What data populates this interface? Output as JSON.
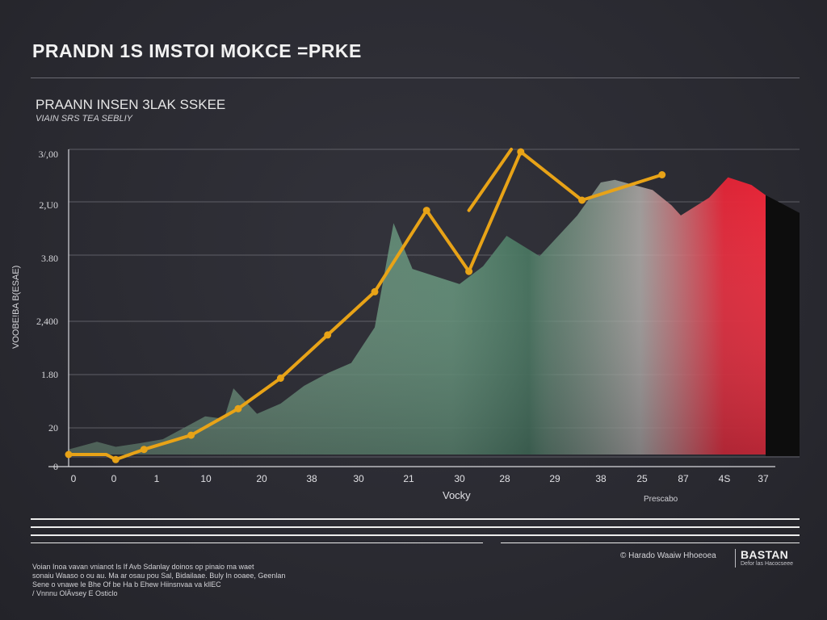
{
  "header": {
    "title": "PRANDN 1S IMSTOI MOKCE =PRKE"
  },
  "chart_data": {
    "type": "area",
    "title": "PRAANN INSEN 3LAK SSKEE",
    "subtitle": "VIAIN SRS TEA SEBLIY",
    "xlabel": "Vocky",
    "ylabel": "VOOBE!BA B(ESAE)",
    "x_note": "Prescabo",
    "y_tick_labels": [
      "0",
      "20",
      "1.80",
      "2,400",
      "3.80",
      "2,U0",
      "3/,00"
    ],
    "x_tick_labels": [
      "0",
      "0",
      "1",
      "10",
      "20",
      "38",
      "30",
      "21",
      "30",
      "28",
      "29",
      "38",
      "25",
      "87",
      "4S",
      "37"
    ],
    "area_series": {
      "name": "",
      "x": [
        0,
        0.6,
        1,
        1.5,
        2,
        2.5,
        2.9,
        3.3,
        3.5,
        4,
        4.5,
        5,
        5.5,
        6,
        6.5,
        6.9,
        7.3,
        7.8,
        8.3,
        8.8,
        9.3,
        10,
        10.8,
        11.3,
        11.6,
        12,
        12.4,
        12.8,
        13,
        13.6,
        14,
        14.5,
        14.8
      ],
      "y": [
        0.1,
        0.25,
        0.15,
        0.22,
        0.3,
        0.55,
        0.75,
        0.7,
        1.3,
        0.8,
        1.0,
        1.35,
        1.6,
        1.8,
        2.5,
        4.55,
        3.65,
        3.5,
        3.35,
        3.7,
        4.3,
        3.9,
        4.7,
        5.35,
        5.4,
        5.3,
        5.2,
        4.9,
        4.7,
        5.05,
        5.45,
        5.3,
        5.1
      ]
    },
    "line_series": {
      "name": "",
      "x": [
        0,
        0.8,
        1,
        1.6,
        2.6,
        3.6,
        4.5,
        5.5,
        6.5,
        7.6,
        8.5,
        9.6,
        10.9,
        12.6
      ],
      "y": [
        0,
        0.0,
        -0.1,
        0.1,
        0.38,
        0.9,
        1.5,
        2.35,
        3.2,
        4.8,
        3.6,
        5.95,
        5.0,
        5.5
      ]
    },
    "line_spikes": [
      {
        "x": [
          8.5,
          9.4
        ],
        "y": [
          4.8,
          6.0
        ]
      }
    ],
    "line_markers": [
      {
        "x": 0,
        "y": 0
      },
      {
        "x": 1,
        "y": -0.1
      },
      {
        "x": 1.6,
        "y": 0.1
      },
      {
        "x": 2.6,
        "y": 0.38
      },
      {
        "x": 3.6,
        "y": 0.9
      },
      {
        "x": 4.5,
        "y": 1.5
      },
      {
        "x": 5.5,
        "y": 2.35
      },
      {
        "x": 6.5,
        "y": 3.2
      },
      {
        "x": 7.6,
        "y": 4.8
      },
      {
        "x": 8.5,
        "y": 3.6
      },
      {
        "x": 9.6,
        "y": 5.95
      },
      {
        "x": 10.9,
        "y": 5.0
      },
      {
        "x": 12.6,
        "y": 5.5
      }
    ],
    "xlim": [
      0,
      14.8
    ],
    "ylim": [
      0,
      6.0
    ],
    "grid": true,
    "legend": "none",
    "colors": {
      "line": "#e8a317",
      "area_start": "#7da98b",
      "area_mid": "#4f8068",
      "area_end": "#e52436",
      "edge": "#0d0d0d",
      "grid": "#707078",
      "axis": "#d8d8dc"
    }
  },
  "footer": {
    "lines": [
      "Voian Inoa vavan vnianot Is If Avb Sdanlay doinos op pinaio ma waet",
      "sonaiu Waaso o ou au. Ma  ar osau pou Sal, Bidailaae. Buly  In  ooaee, Geenlan",
      "Sene o vnawe le Bhe  Of be  Ha b Ehew Hiinsnvaa  va  kllEC",
      "/ Vnnnu OlÄvsey E Osticlo"
    ],
    "source": "© Harado Waaiw Hhoeoea",
    "brand": "BASTAN",
    "brand_tag": "Defor las Hacocseee"
  }
}
